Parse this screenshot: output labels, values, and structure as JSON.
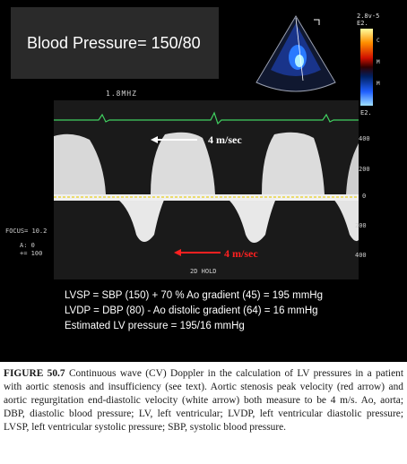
{
  "figure": {
    "blood_pressure": "Blood Pressure= 150/80",
    "frequency": "1.8MHZ",
    "focus": "FOCUS= 10.2",
    "ao_label_line1": "A: 0",
    "ao_label_line2": "+= 100",
    "hold": "2D HOLD",
    "scale_ticks": [
      "400",
      "200",
      "0",
      "200",
      "400"
    ],
    "arrow_label_white": "4 m/sec",
    "arrow_label_red": "4 m/sec",
    "color_scale_top_line1": "2.8v-5",
    "color_scale_top_line2": "E2.",
    "color_scale_labels": [
      "C",
      "M",
      "M",
      "S"
    ],
    "color_scale_bottom": "E2.",
    "colors": {
      "background": "#000000",
      "red_arrow": "#ff2020",
      "white_arrow": "#ffffff",
      "baseline": "#e8d020",
      "ecg": "#40d060"
    }
  },
  "equations": [
    "LVSP = SBP (150) + 70 % Ao gradient (45) = 195 mmHg",
    "LVDP = DBP (80) - Ao distolic gradient (64) = 16 mmHg",
    "Estimated LV pressure = 195/16 mmHg"
  ],
  "caption": {
    "label": "FIGURE 50.7",
    "text": "Continuous wave (CV) Doppler in the calculation of LV pressures in a patient with aortic stenosis and insufficiency (see text). Aortic stenosis peak velocity (red arrow) and aortic regurgitation end-diastolic velocity (white arrow) both measure to be 4 m/s. Ao, aorta; DBP, diastolic blood pressure; LV, left ventricular; LVDP, left ventricular diastolic pressure; LVSP, left ventricular systolic pressure; SBP, systolic blood pressure."
  }
}
